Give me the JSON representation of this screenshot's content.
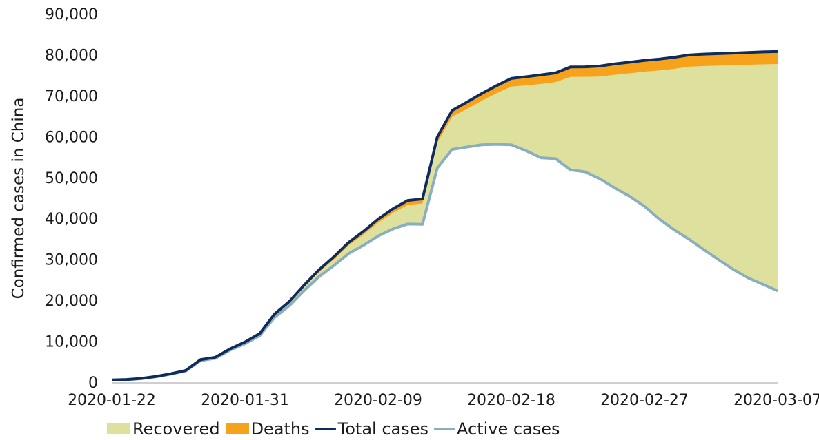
{
  "chart_data": {
    "type": "area",
    "ylabel": "Confirmed cases in China",
    "xlabel": "",
    "ylim": [
      0,
      90000
    ],
    "yticks": [
      0,
      10000,
      20000,
      30000,
      40000,
      50000,
      60000,
      70000,
      80000,
      90000
    ],
    "ytick_labels": [
      "0",
      "10,000",
      "20,000",
      "30,000",
      "40,000",
      "50,000",
      "60,000",
      "70,000",
      "80,000",
      "90,000"
    ],
    "xtick_labels": [
      "2020-01-22",
      "2020-01-31",
      "2020-02-09",
      "2020-02-18",
      "2020-02-27",
      "2020-03-07"
    ],
    "x": [
      "2020-01-22",
      "2020-01-23",
      "2020-01-24",
      "2020-01-25",
      "2020-01-26",
      "2020-01-27",
      "2020-01-28",
      "2020-01-29",
      "2020-01-30",
      "2020-01-31",
      "2020-02-01",
      "2020-02-02",
      "2020-02-03",
      "2020-02-04",
      "2020-02-05",
      "2020-02-06",
      "2020-02-07",
      "2020-02-08",
      "2020-02-09",
      "2020-02-10",
      "2020-02-11",
      "2020-02-12",
      "2020-02-13",
      "2020-02-14",
      "2020-02-15",
      "2020-02-16",
      "2020-02-17",
      "2020-02-18",
      "2020-02-19",
      "2020-02-20",
      "2020-02-21",
      "2020-02-22",
      "2020-02-23",
      "2020-02-24",
      "2020-02-25",
      "2020-02-26",
      "2020-02-27",
      "2020-02-28",
      "2020-02-29",
      "2020-03-01",
      "2020-03-02",
      "2020-03-03",
      "2020-03-04",
      "2020-03-05",
      "2020-03-06",
      "2020-03-07"
    ],
    "series": [
      {
        "name": "Total cases",
        "values": [
          548,
          643,
          920,
          1406,
          2075,
          2877,
          5509,
          6087,
          8141,
          9802,
          11891,
          16630,
          19716,
          23707,
          27440,
          30587,
          34110,
          36814,
          39829,
          42354,
          44386,
          44759,
          59895,
          66358,
          68413,
          70513,
          72434,
          74211,
          74619,
          75077,
          75550,
          77001,
          77022,
          77241,
          77754,
          78166,
          78600,
          78928,
          79356,
          79932,
          80136,
          80261,
          80386,
          80537,
          80690,
          80770
        ]
      },
      {
        "name": "Recovered",
        "values": [
          28,
          30,
          36,
          39,
          49,
          58,
          101,
          120,
          135,
          214,
          275,
          463,
          614,
          843,
          1115,
          1477,
          1999,
          2596,
          3219,
          3918,
          4636,
          5082,
          6217,
          7977,
          9298,
          10755,
          12462,
          14206,
          15962,
          18014,
          18704,
          22699,
          23187,
          24990,
          27650,
          30053,
          32898,
          36291,
          39279,
          42118,
          44810,
          47367,
          49856,
          52045,
          53726,
          55404
        ]
      },
      {
        "name": "Deaths",
        "values": [
          17,
          18,
          26,
          42,
          56,
          82,
          131,
          133,
          171,
          213,
          259,
          361,
          425,
          491,
          563,
          633,
          718,
          805,
          905,
          1012,
          1112,
          1117,
          1369,
          1521,
          1663,
          1766,
          1864,
          2003,
          2116,
          2238,
          2238,
          2443,
          2445,
          2595,
          2665,
          2717,
          2746,
          2790,
          2837,
          2872,
          2914,
          2947,
          2983,
          3015,
          3044,
          3072
        ]
      },
      {
        "name": "Active cases",
        "values": [
          503,
          595,
          858,
          1325,
          1970,
          2737,
          5277,
          5834,
          7835,
          9375,
          11357,
          15806,
          18677,
          22373,
          25762,
          28477,
          31393,
          33413,
          35705,
          37424,
          38638,
          38560,
          52309,
          56860,
          57452,
          57992,
          58108,
          58002,
          56541,
          54825,
          54608,
          51859,
          51390,
          49656,
          47439,
          45396,
          42956,
          39847,
          37240,
          34942,
          32412,
          29947,
          27547,
          25477,
          23920,
          22294
        ]
      }
    ],
    "legend": [
      {
        "label": "Recovered",
        "color": "#dde19d",
        "kind": "area"
      },
      {
        "label": "Deaths",
        "color": "#f6a21a",
        "kind": "area"
      },
      {
        "label": "Total cases",
        "color": "#0f2b5b",
        "kind": "line"
      },
      {
        "label": "Active cases",
        "color": "#89aebe",
        "kind": "line"
      }
    ],
    "legend_position": "bottom",
    "grid": false
  }
}
